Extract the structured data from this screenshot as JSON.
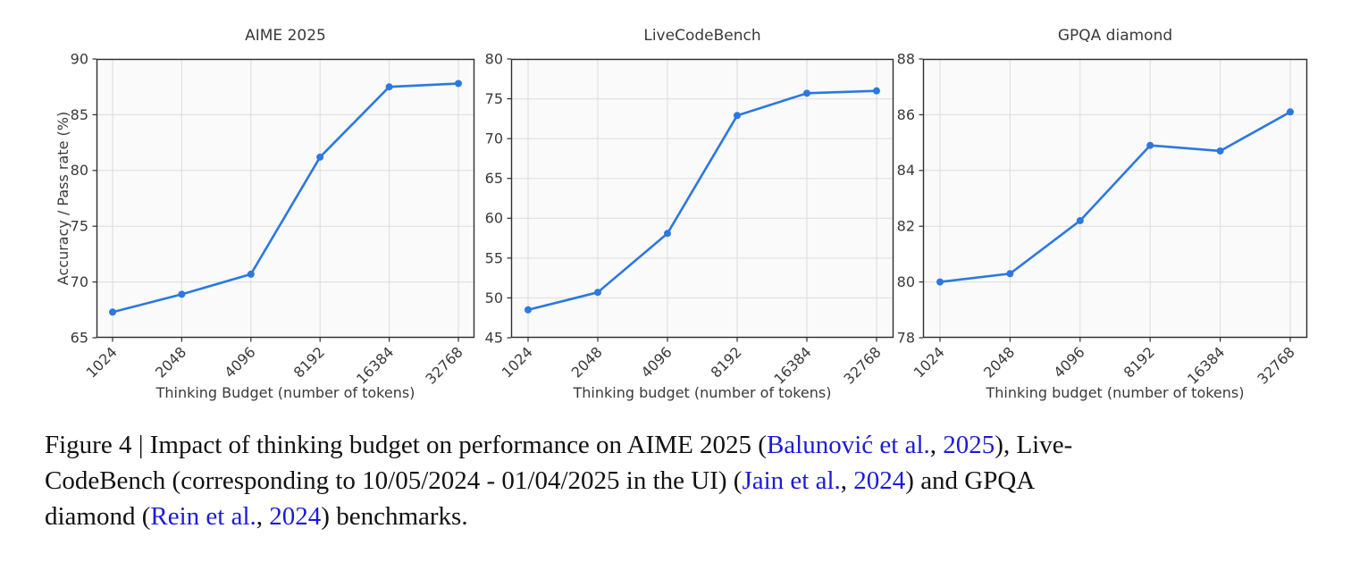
{
  "chart_data": [
    {
      "type": "line",
      "title": "AIME 2025",
      "xlabel": "Thinking Budget (number of tokens)",
      "ylabel": "Accuracy / Pass rate (%)",
      "categories": [
        "1024",
        "2048",
        "4096",
        "8192",
        "16384",
        "32768"
      ],
      "values": [
        67.3,
        68.9,
        70.7,
        81.2,
        87.5,
        87.8
      ],
      "ylim": [
        65,
        90
      ],
      "yticks": [
        65,
        70,
        75,
        80,
        85,
        90
      ],
      "grid": true,
      "legend": "none",
      "x_scale": "categorical-log2"
    },
    {
      "type": "line",
      "title": "LiveCodeBench",
      "xlabel": "Thinking budget (number of tokens)",
      "ylabel": "",
      "categories": [
        "1024",
        "2048",
        "4096",
        "8192",
        "16384",
        "32768"
      ],
      "values": [
        48.5,
        50.7,
        58.1,
        72.9,
        75.7,
        76.0
      ],
      "ylim": [
        45,
        80
      ],
      "yticks": [
        45,
        50,
        55,
        60,
        65,
        70,
        75,
        80
      ],
      "grid": true,
      "legend": "none",
      "x_scale": "categorical-log2"
    },
    {
      "type": "line",
      "title": "GPQA diamond",
      "xlabel": "Thinking budget (number of tokens)",
      "ylabel": "",
      "categories": [
        "1024",
        "2048",
        "4096",
        "8192",
        "16384",
        "32768"
      ],
      "values": [
        80.0,
        80.3,
        82.2,
        84.9,
        84.7,
        86.1
      ],
      "ylim": [
        78,
        88
      ],
      "yticks": [
        78,
        80,
        82,
        84,
        86,
        88
      ],
      "grid": true,
      "legend": "none",
      "x_scale": "categorical-log2"
    }
  ],
  "colors": {
    "line": "#2b78e0",
    "marker": "#2b78e0",
    "plot_bg": "#fafafa",
    "grid": "#dcdcdc",
    "spine": "#2e2e2e",
    "tick_label": "#3a3a3a",
    "link": "#1b1bd8",
    "caption_text": "#111111"
  },
  "caption": {
    "lines": [
      {
        "segments": [
          {
            "t": "Figure 4 | Impact of thinking budget on performance on AIME 2025 (",
            "link": false
          },
          {
            "t": "Balunović et al.",
            "link": true
          },
          {
            "t": ", ",
            "link": false
          },
          {
            "t": "2025",
            "link": true
          },
          {
            "t": "), Live-",
            "link": false
          }
        ]
      },
      {
        "segments": [
          {
            "t": "CodeBench (corresponding to 10/05/2024 - 01/04/2025 in the UI) (",
            "link": false
          },
          {
            "t": "Jain et al.",
            "link": true
          },
          {
            "t": ", ",
            "link": false
          },
          {
            "t": "2024",
            "link": true
          },
          {
            "t": ") and GPQA",
            "link": false
          }
        ]
      },
      {
        "segments": [
          {
            "t": "diamond (",
            "link": false
          },
          {
            "t": "Rein et al.",
            "link": true
          },
          {
            "t": ", ",
            "link": false
          },
          {
            "t": "2024",
            "link": true
          },
          {
            "t": ") benchmarks.",
            "link": false
          }
        ]
      }
    ]
  }
}
